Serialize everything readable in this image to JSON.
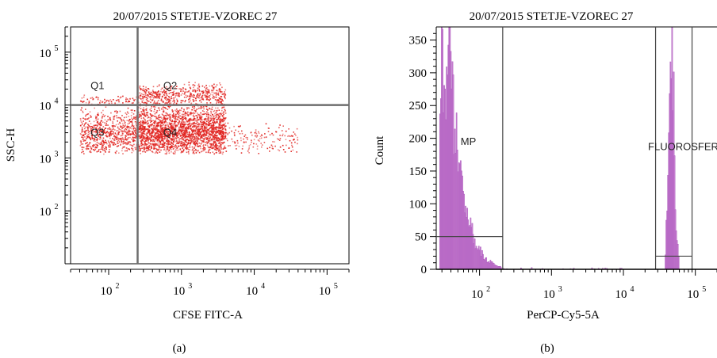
{
  "colors": {
    "dot_plot": "#e0201c",
    "histogram_fill": "#c77fd0",
    "histogram_line": "#9a3fb0",
    "gate_line": "#444444",
    "quadrant_line": "#6e6e6e"
  },
  "chart_data": [
    {
      "panel": "(a)",
      "type": "scatter",
      "title": "20/07/2015 STETJE-VZOREC 27",
      "xlabel": "CFSE FITC-A",
      "ylabel": "SSC-H",
      "xscale": "log",
      "yscale": "log",
      "xlim": [
        30,
        200000
      ],
      "ylim": [
        10,
        300000
      ],
      "x_ticks": [
        {
          "value": 100,
          "base": "10",
          "exp": "2"
        },
        {
          "value": 1000,
          "base": "10",
          "exp": "3"
        },
        {
          "value": 10000,
          "base": "10",
          "exp": "4"
        },
        {
          "value": 100000,
          "base": "10",
          "exp": "5"
        }
      ],
      "y_ticks": [
        {
          "value": 100,
          "base": "10",
          "exp": "2"
        },
        {
          "value": 1000,
          "base": "10",
          "exp": "3"
        },
        {
          "value": 10000,
          "base": "10",
          "exp": "4"
        },
        {
          "value": 100000,
          "base": "10",
          "exp": "5"
        }
      ],
      "quadrant_lines": {
        "x": 250,
        "y": 10000
      },
      "quadrant_labels": [
        {
          "text": "Q1",
          "x": 70,
          "y": 20000
        },
        {
          "text": "Q2",
          "x": 700,
          "y": 20000
        },
        {
          "text": "Q3",
          "x": 70,
          "y": 2600
        },
        {
          "text": "Q4",
          "x": 700,
          "y": 2600
        }
      ],
      "point_clouds": [
        {
          "label": "Q4",
          "x_range": [
            250,
            4000
          ],
          "y_range": [
            1200,
            12000
          ],
          "n": 2300
        },
        {
          "label": "Q3",
          "x_range": [
            40,
            250
          ],
          "y_range": [
            1200,
            10000
          ],
          "n": 700
        },
        {
          "label": "Q2",
          "x_range": [
            250,
            4000
          ],
          "y_range": [
            10000,
            28000
          ],
          "n": 500
        },
        {
          "label": "Q1",
          "x_range": [
            40,
            250
          ],
          "y_range": [
            10000,
            16000
          ],
          "n": 80
        },
        {
          "label": "tail",
          "x_range": [
            4000,
            40000
          ],
          "y_range": [
            1200,
            5000
          ],
          "n": 160
        }
      ]
    },
    {
      "panel": "(b)",
      "type": "histogram",
      "title": "20/07/2015 STETJE-VZOREC 27",
      "xlabel": "PerCP-Cy5-5A",
      "ylabel": "Count",
      "xscale": "log",
      "xlim": [
        25,
        200000
      ],
      "ylim": [
        0,
        370
      ],
      "x_ticks": [
        {
          "value": 100,
          "base": "10",
          "exp": "2"
        },
        {
          "value": 1000,
          "base": "10",
          "exp": "3"
        },
        {
          "value": 10000,
          "base": "10",
          "exp": "4"
        },
        {
          "value": 100000,
          "base": "10",
          "exp": "5"
        }
      ],
      "y_ticks": [
        "0",
        "50",
        "100",
        "150",
        "200",
        "250",
        "300",
        "350"
      ],
      "gates": [
        {
          "label": "MP",
          "x_start": 25,
          "x_end": 210,
          "level": 50,
          "label_x": 70,
          "label_y": 190
        },
        {
          "label": "FLUOROSFERE",
          "x_start": 28000,
          "x_end": 90000,
          "level": 20,
          "label_x": 22000,
          "label_y": 182
        }
      ],
      "histogram_peaks": [
        {
          "x": 28,
          "count": 320
        },
        {
          "x": 32,
          "count": 290
        },
        {
          "x": 38,
          "count": 330
        },
        {
          "x": 45,
          "count": 210
        },
        {
          "x": 55,
          "count": 140
        },
        {
          "x": 70,
          "count": 80
        },
        {
          "x": 90,
          "count": 40
        },
        {
          "x": 120,
          "count": 15
        },
        {
          "x": 200,
          "count": 3
        },
        {
          "x": 38000,
          "count": 15
        },
        {
          "x": 42000,
          "count": 150
        },
        {
          "x": 45000,
          "count": 300
        },
        {
          "x": 47500,
          "count": 370
        },
        {
          "x": 50000,
          "count": 260
        },
        {
          "x": 54000,
          "count": 60
        },
        {
          "x": 60000,
          "count": 5
        }
      ]
    }
  ],
  "captions": [
    "(a)",
    "(b)"
  ]
}
